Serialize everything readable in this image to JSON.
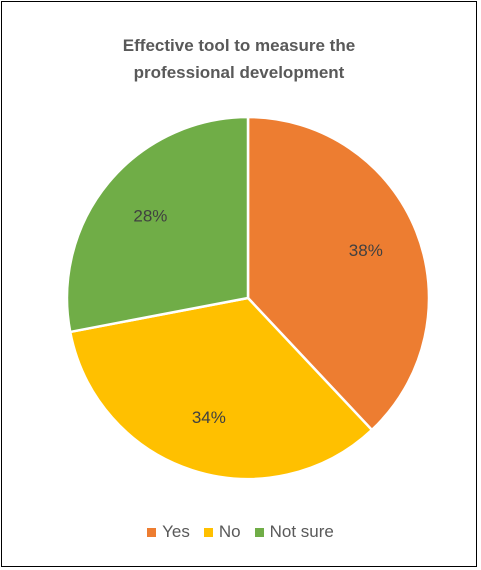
{
  "chart_data": {
    "type": "pie",
    "title": [
      "Effective tool to measure the",
      "professional development"
    ],
    "categories": [
      "Yes",
      "No",
      "Not sure"
    ],
    "values": [
      38,
      34,
      28
    ],
    "value_labels": [
      "38%",
      "34%",
      "28%"
    ],
    "colors": [
      "#ED7D31",
      "#FFC000",
      "#70AD47"
    ],
    "legend_position": "bottom"
  }
}
